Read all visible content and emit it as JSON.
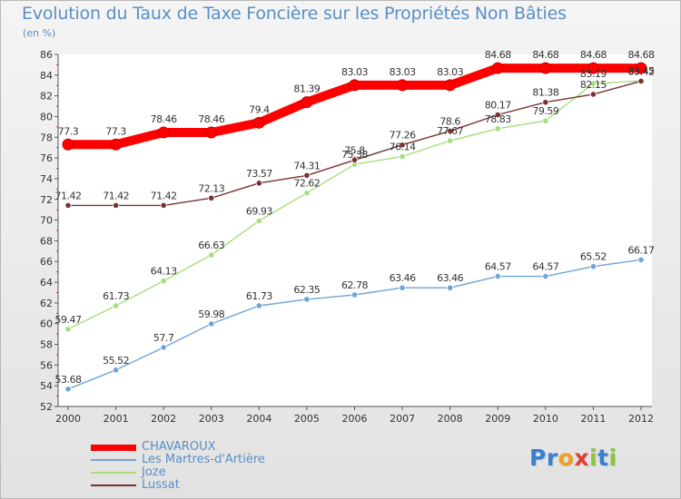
{
  "title": "Evolution du Taux de Taxe Foncière sur les Propriétés Non Bâties",
  "unit": "(en %)",
  "brand": {
    "name": "Proxiti",
    "letters": [
      "P",
      "r",
      "o",
      "x",
      "i",
      "t",
      "i"
    ],
    "colors": [
      "#3a7fd0",
      "#3a7fd0",
      "#f0a020",
      "#e04030",
      "#8cc63f",
      "#3a7fd0",
      "#8cc63f"
    ]
  },
  "chart_data": {
    "type": "line",
    "x": [
      "2000",
      "2001",
      "2002",
      "2003",
      "2004",
      "2005",
      "2006",
      "2007",
      "2008",
      "2009",
      "2010",
      "2011",
      "2012"
    ],
    "ylim": [
      52,
      86
    ],
    "yticks": [
      "52",
      "54",
      "56",
      "58",
      "60",
      "62",
      "64",
      "66",
      "68",
      "70",
      "72",
      "74",
      "76",
      "78",
      "80",
      "82",
      "84",
      "86"
    ],
    "grid": false,
    "legend_position": "bottom-left",
    "series": [
      {
        "name": "CHAVAROUX",
        "color": "#ff0000",
        "values": [
          77.3,
          77.3,
          78.46,
          78.46,
          79.4,
          81.39,
          83.03,
          83.03,
          83.03,
          84.68,
          84.68,
          84.68,
          84.68
        ],
        "labels": [
          "77.3",
          "77.3",
          "78.46",
          "78.46",
          "79.4",
          "81.39",
          "83.03",
          "83.03",
          "83.03",
          "84.68",
          "84.68",
          "84.68",
          "84.68"
        ]
      },
      {
        "name": "Les Martres-d'Artière",
        "color": "#6fa5d6",
        "values": [
          53.68,
          55.52,
          57.7,
          59.98,
          61.73,
          62.35,
          62.78,
          63.46,
          63.46,
          64.57,
          64.57,
          65.52,
          66.17
        ],
        "labels": [
          "53.68",
          "55.52",
          "57.7",
          "59.98",
          "61.73",
          "62.35",
          "62.78",
          "63.46",
          "63.46",
          "64.57",
          "64.57",
          "65.52",
          "66.17"
        ]
      },
      {
        "name": "Joze",
        "color": "#a9dd7a",
        "values": [
          59.47,
          61.73,
          64.13,
          66.63,
          69.93,
          72.62,
          75.38,
          76.14,
          77.67,
          78.83,
          79.59,
          83.19,
          83.45
        ],
        "labels": [
          "59.47",
          "61.73",
          "64.13",
          "66.63",
          "69.93",
          "72.62",
          "75.38",
          "76.14",
          "77.67",
          "78.83",
          "79.59",
          "83.19",
          "83.45"
        ]
      },
      {
        "name": "Lussat",
        "color": "#7a3131",
        "values": [
          71.42,
          71.42,
          71.42,
          72.13,
          73.57,
          74.31,
          75.8,
          77.26,
          78.6,
          80.17,
          81.38,
          82.15,
          83.42
        ],
        "labels": [
          "71.42",
          "71.42",
          "71.42",
          "72.13",
          "73.57",
          "74.31",
          "75.8",
          "77.26",
          "78.6",
          "80.17",
          "81.38",
          "82.15",
          "83.42"
        ]
      }
    ]
  }
}
